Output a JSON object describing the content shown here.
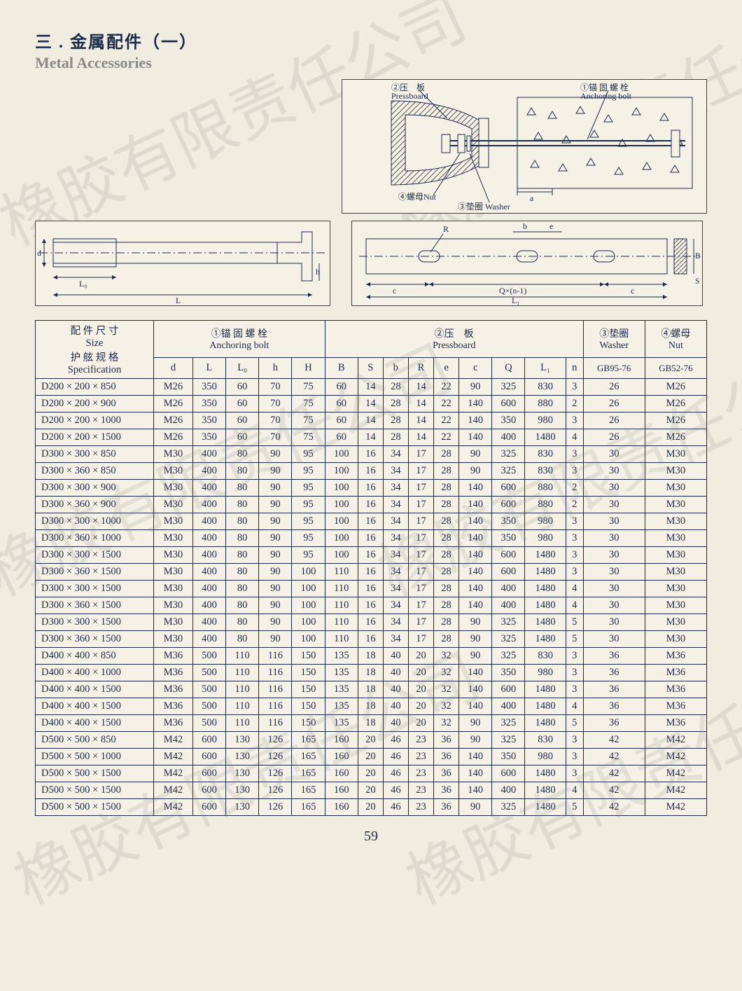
{
  "title": {
    "cn": "三 . 金属配件（一）",
    "en": "Metal Accessories"
  },
  "diagram_labels": {
    "pressboard_cn": "②压　板",
    "pressboard_en": "Pressboard",
    "anchor_cn": "①锚 固 螺 栓",
    "anchor_en": "Anchoring bolt",
    "nut_cn": "④螺母Nut",
    "washer_cn": "③垫圈 Washer",
    "d": "d",
    "L0": "L₀",
    "L": "L",
    "h": "h",
    "R": "R",
    "b": "b",
    "e": "e",
    "c1": "c",
    "c2": "c",
    "Qn": "Q×(n-1)",
    "L1": "L₁",
    "B": "B",
    "S": "S",
    "a": "a"
  },
  "table": {
    "headers": {
      "spec_cn1": "配 件 尺 寸",
      "spec_size": "Size",
      "spec_cn2": "护 舷 规 格",
      "spec_en": "Specification",
      "anchor_cn": "①锚 固 螺 栓",
      "anchor_en": "Anchoring bolt",
      "press_cn": "②压　板",
      "press_en": "Pressboard",
      "washer_cn": "③垫圈",
      "washer_en": "Washer",
      "nut_cn": "④螺母",
      "nut_en": "Nut",
      "cols": [
        "d",
        "L",
        "L₀",
        "h",
        "H",
        "B",
        "S",
        "b",
        "R",
        "e",
        "c",
        "Q",
        "L₁",
        "n",
        "GB95-76",
        "GB52-76"
      ]
    },
    "rows": [
      [
        "D200 × 200 × 850",
        "M26",
        "350",
        "60",
        "70",
        "75",
        "60",
        "14",
        "28",
        "14",
        "22",
        "90",
        "325",
        "830",
        "3",
        "26",
        "M26"
      ],
      [
        "D200 × 200 × 900",
        "M26",
        "350",
        "60",
        "70",
        "75",
        "60",
        "14",
        "28",
        "14",
        "22",
        "140",
        "600",
        "880",
        "2",
        "26",
        "M26"
      ],
      [
        "D200 × 200 × 1000",
        "M26",
        "350",
        "60",
        "70",
        "75",
        "60",
        "14",
        "28",
        "14",
        "22",
        "140",
        "350",
        "980",
        "3",
        "26",
        "M26"
      ],
      [
        "D200 × 200 × 1500",
        "M26",
        "350",
        "60",
        "70",
        "75",
        "60",
        "14",
        "28",
        "14",
        "22",
        "140",
        "400",
        "1480",
        "4",
        "26",
        "M26"
      ],
      [
        "D300 × 300 × 850",
        "M30",
        "400",
        "80",
        "90",
        "95",
        "100",
        "16",
        "34",
        "17",
        "28",
        "90",
        "325",
        "830",
        "3",
        "30",
        "M30"
      ],
      [
        "D300 × 360 × 850",
        "M30",
        "400",
        "80",
        "90",
        "95",
        "100",
        "16",
        "34",
        "17",
        "28",
        "90",
        "325",
        "830",
        "3",
        "30",
        "M30"
      ],
      [
        "D300 × 300 × 900",
        "M30",
        "400",
        "80",
        "90",
        "95",
        "100",
        "16",
        "34",
        "17",
        "28",
        "140",
        "600",
        "880",
        "2",
        "30",
        "M30"
      ],
      [
        "D300 × 360 × 900",
        "M30",
        "400",
        "80",
        "90",
        "95",
        "100",
        "16",
        "34",
        "17",
        "28",
        "140",
        "600",
        "880",
        "2",
        "30",
        "M30"
      ],
      [
        "D300 × 300 × 1000",
        "M30",
        "400",
        "80",
        "90",
        "95",
        "100",
        "16",
        "34",
        "17",
        "28",
        "140",
        "350",
        "980",
        "3",
        "30",
        "M30"
      ],
      [
        "D300 × 360 × 1000",
        "M30",
        "400",
        "80",
        "90",
        "95",
        "100",
        "16",
        "34",
        "17",
        "28",
        "140",
        "350",
        "980",
        "3",
        "30",
        "M30"
      ],
      [
        "D300 × 300 × 1500",
        "M30",
        "400",
        "80",
        "90",
        "95",
        "100",
        "16",
        "34",
        "17",
        "28",
        "140",
        "600",
        "1480",
        "3",
        "30",
        "M30"
      ],
      [
        "D300 × 360 × 1500",
        "M30",
        "400",
        "80",
        "90",
        "100",
        "110",
        "16",
        "34",
        "17",
        "28",
        "140",
        "600",
        "1480",
        "3",
        "30",
        "M30"
      ],
      [
        "D300 × 300 × 1500",
        "M30",
        "400",
        "80",
        "90",
        "100",
        "110",
        "16",
        "34",
        "17",
        "28",
        "140",
        "400",
        "1480",
        "4",
        "30",
        "M30"
      ],
      [
        "D300 × 360 × 1500",
        "M30",
        "400",
        "80",
        "90",
        "100",
        "110",
        "16",
        "34",
        "17",
        "28",
        "140",
        "400",
        "1480",
        "4",
        "30",
        "M30"
      ],
      [
        "D300 × 300 × 1500",
        "M30",
        "400",
        "80",
        "90",
        "100",
        "110",
        "16",
        "34",
        "17",
        "28",
        "90",
        "325",
        "1480",
        "5",
        "30",
        "M30"
      ],
      [
        "D300 × 360 × 1500",
        "M30",
        "400",
        "80",
        "90",
        "100",
        "110",
        "16",
        "34",
        "17",
        "28",
        "90",
        "325",
        "1480",
        "5",
        "30",
        "M30"
      ],
      [
        "D400 × 400 × 850",
        "M36",
        "500",
        "110",
        "116",
        "150",
        "135",
        "18",
        "40",
        "20",
        "32",
        "90",
        "325",
        "830",
        "3",
        "36",
        "M36"
      ],
      [
        "D400 × 400 × 1000",
        "M36",
        "500",
        "110",
        "116",
        "150",
        "135",
        "18",
        "40",
        "20",
        "32",
        "140",
        "350",
        "980",
        "3",
        "36",
        "M36"
      ],
      [
        "D400 × 400 × 1500",
        "M36",
        "500",
        "110",
        "116",
        "150",
        "135",
        "18",
        "40",
        "20",
        "32",
        "140",
        "600",
        "1480",
        "3",
        "36",
        "M36"
      ],
      [
        "D400 × 400 × 1500",
        "M36",
        "500",
        "110",
        "116",
        "150",
        "135",
        "18",
        "40",
        "20",
        "32",
        "140",
        "400",
        "1480",
        "4",
        "36",
        "M36"
      ],
      [
        "D400 × 400 × 1500",
        "M36",
        "500",
        "110",
        "116",
        "150",
        "135",
        "18",
        "40",
        "20",
        "32",
        "90",
        "325",
        "1480",
        "5",
        "36",
        "M36"
      ],
      [
        "D500 × 500 × 850",
        "M42",
        "600",
        "130",
        "126",
        "165",
        "160",
        "20",
        "46",
        "23",
        "36",
        "90",
        "325",
        "830",
        "3",
        "42",
        "M42"
      ],
      [
        "D500 × 500 × 1000",
        "M42",
        "600",
        "130",
        "126",
        "165",
        "160",
        "20",
        "46",
        "23",
        "36",
        "140",
        "350",
        "980",
        "3",
        "42",
        "M42"
      ],
      [
        "D500 × 500 × 1500",
        "M42",
        "600",
        "130",
        "126",
        "165",
        "160",
        "20",
        "46",
        "23",
        "36",
        "140",
        "600",
        "1480",
        "3",
        "42",
        "M42"
      ],
      [
        "D500 × 500 × 1500",
        "M42",
        "600",
        "130",
        "126",
        "165",
        "160",
        "20",
        "46",
        "23",
        "36",
        "140",
        "400",
        "1480",
        "4",
        "42",
        "M42"
      ],
      [
        "D500 × 500 × 1500",
        "M42",
        "600",
        "130",
        "126",
        "165",
        "160",
        "20",
        "46",
        "23",
        "36",
        "90",
        "325",
        "1480",
        "5",
        "42",
        "M42"
      ]
    ]
  },
  "page_number": "59",
  "watermark_text": "橡胶有限责任公司",
  "colors": {
    "text": "#1a2a4a",
    "bg": "#f0ece0",
    "border": "#1a2a4a",
    "watermark": "rgba(120,120,120,0.15)",
    "hatch": "#555"
  }
}
